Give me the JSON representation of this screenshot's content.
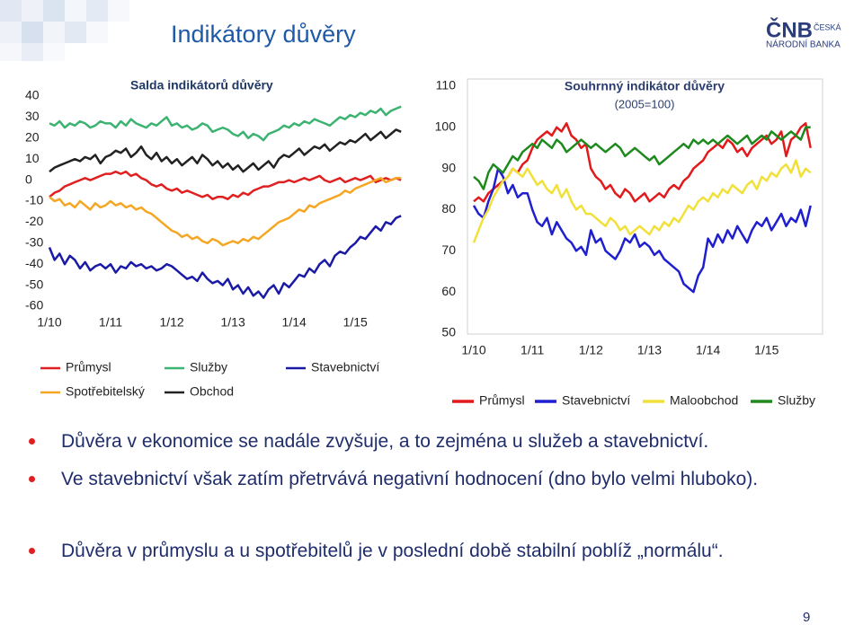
{
  "title": "Indikátory důvěry",
  "logo": {
    "brand": "ČNB",
    "line1": "ČESKÁ",
    "line2": "NÁRODNÍ BANKA"
  },
  "chart_data": [
    {
      "type": "line",
      "title": "Salda indikátorů důvěry",
      "categories": [
        "1/10",
        null,
        null,
        null,
        null,
        null,
        null,
        null,
        null,
        null,
        null,
        null,
        "1/11",
        null,
        null,
        null,
        null,
        null,
        null,
        null,
        null,
        null,
        null,
        null,
        "1/12",
        null,
        null,
        null,
        null,
        null,
        null,
        null,
        null,
        null,
        null,
        null,
        "1/13",
        null,
        null,
        null,
        null,
        null,
        null,
        null,
        null,
        null,
        null,
        null,
        "1/14",
        null,
        null,
        null,
        null,
        null,
        null,
        null,
        null,
        null,
        null,
        null,
        "1/15",
        null,
        null,
        null,
        null,
        null,
        null,
        null,
        null,
        null
      ],
      "ylim": [
        -60,
        40
      ],
      "yticks": [
        -60,
        -50,
        -40,
        -30,
        -20,
        -10,
        0,
        10,
        20,
        30,
        40
      ],
      "grid": false,
      "series": [
        {
          "name": "Průmysl",
          "color": "#e02020",
          "values": [
            -8,
            -6,
            -5,
            -3,
            -2,
            -1,
            0,
            1,
            0,
            1,
            2,
            3,
            3,
            4,
            3,
            4,
            2,
            3,
            1,
            0,
            -2,
            -3,
            -2,
            -4,
            -5,
            -4,
            -6,
            -5,
            -6,
            -7,
            -8,
            -7,
            -9,
            -8,
            -8,
            -9,
            -7,
            -8,
            -6,
            -7,
            -5,
            -4,
            -3,
            -3,
            -2,
            -1,
            -1,
            0,
            -1,
            0,
            1,
            0,
            1,
            2,
            0,
            -1,
            0,
            1,
            -1,
            0,
            1,
            0,
            1,
            2,
            -1,
            0,
            1,
            0,
            1,
            0
          ]
        },
        {
          "name": "Služby",
          "color": "#3cb371",
          "values": [
            27,
            26,
            28,
            25,
            27,
            26,
            28,
            27,
            25,
            26,
            28,
            27,
            27,
            25,
            28,
            26,
            29,
            27,
            26,
            25,
            27,
            26,
            28,
            30,
            26,
            27,
            25,
            26,
            24,
            25,
            27,
            26,
            23,
            24,
            25,
            24,
            22,
            21,
            23,
            20,
            22,
            21,
            19,
            22,
            23,
            24,
            26,
            25,
            27,
            26,
            28,
            27,
            29,
            28,
            27,
            26,
            28,
            30,
            29,
            31,
            30,
            32,
            31,
            33,
            32,
            34,
            31,
            33,
            34,
            35
          ]
        },
        {
          "name": "Stavebnictví",
          "color": "#1a1aa6",
          "values": [
            -32,
            -38,
            -35,
            -40,
            -36,
            -38,
            -42,
            -39,
            -43,
            -41,
            -40,
            -42,
            -40,
            -44,
            -41,
            -42,
            -39,
            -41,
            -40,
            -42,
            -41,
            -43,
            -42,
            -40,
            -41,
            -43,
            -45,
            -47,
            -46,
            -48,
            -44,
            -47,
            -49,
            -48,
            -50,
            -47,
            -52,
            -50,
            -54,
            -51,
            -55,
            -53,
            -56,
            -52,
            -50,
            -54,
            -49,
            -51,
            -48,
            -45,
            -46,
            -42,
            -44,
            -40,
            -38,
            -41,
            -36,
            -34,
            -35,
            -32,
            -30,
            -27,
            -28,
            -25,
            -22,
            -24,
            -20,
            -21,
            -18,
            -17
          ]
        },
        {
          "name": "Spotřebitelský",
          "color": "#f5a623",
          "values": [
            -8,
            -10,
            -9,
            -12,
            -11,
            -13,
            -10,
            -12,
            -14,
            -11,
            -13,
            -12,
            -10,
            -12,
            -11,
            -13,
            -12,
            -14,
            -13,
            -15,
            -16,
            -18,
            -20,
            -22,
            -24,
            -25,
            -27,
            -26,
            -28,
            -27,
            -29,
            -30,
            -28,
            -29,
            -31,
            -30,
            -29,
            -30,
            -28,
            -29,
            -27,
            -28,
            -26,
            -24,
            -22,
            -20,
            -19,
            -18,
            -16,
            -14,
            -15,
            -12,
            -13,
            -11,
            -10,
            -9,
            -8,
            -7,
            -5,
            -6,
            -4,
            -3,
            -2,
            -1,
            0,
            1,
            -1,
            0,
            1,
            1
          ]
        },
        {
          "name": "Obchod",
          "color": "#222222",
          "values": [
            4,
            6,
            7,
            8,
            9,
            10,
            9,
            11,
            10,
            12,
            8,
            11,
            12,
            14,
            13,
            15,
            11,
            13,
            16,
            12,
            10,
            13,
            9,
            11,
            8,
            10,
            7,
            9,
            11,
            8,
            12,
            10,
            7,
            9,
            6,
            8,
            5,
            7,
            4,
            6,
            8,
            5,
            7,
            9,
            6,
            10,
            12,
            11,
            13,
            15,
            12,
            14,
            16,
            15,
            17,
            14,
            16,
            18,
            17,
            19,
            18,
            20,
            22,
            19,
            21,
            23,
            20,
            22,
            24,
            23
          ]
        }
      ]
    },
    {
      "type": "line",
      "title": "Souhrnný indikátor důvěry",
      "subtitle": "(2005=100)",
      "categories": [
        "1/10",
        null,
        null,
        null,
        null,
        null,
        null,
        null,
        null,
        null,
        null,
        null,
        "1/11",
        null,
        null,
        null,
        null,
        null,
        null,
        null,
        null,
        null,
        null,
        null,
        "1/12",
        null,
        null,
        null,
        null,
        null,
        null,
        null,
        null,
        null,
        null,
        null,
        "1/13",
        null,
        null,
        null,
        null,
        null,
        null,
        null,
        null,
        null,
        null,
        null,
        "1/14",
        null,
        null,
        null,
        null,
        null,
        null,
        null,
        null,
        null,
        null,
        null,
        "1/15",
        null,
        null,
        null,
        null,
        null,
        null,
        null,
        null,
        null
      ],
      "ylim": [
        50,
        110
      ],
      "yticks": [
        50,
        60,
        70,
        80,
        90,
        100,
        110
      ],
      "grid": false,
      "series": [
        {
          "name": "Průmysl",
          "color": "#e31a1c",
          "values": [
            82,
            83,
            82,
            84,
            85,
            86,
            87,
            88,
            90,
            89,
            91,
            92,
            95,
            97,
            98,
            99,
            98,
            100,
            99,
            101,
            98,
            97,
            95,
            96,
            90,
            88,
            87,
            85,
            86,
            84,
            83,
            85,
            84,
            82,
            83,
            84,
            82,
            83,
            84,
            83,
            85,
            86,
            85,
            87,
            88,
            90,
            91,
            92,
            94,
            95,
            96,
            95,
            97,
            96,
            94,
            95,
            93,
            95,
            96,
            97,
            98,
            96,
            97,
            99,
            93,
            97,
            98,
            100,
            101,
            95
          ]
        },
        {
          "name": "Stavebnictví",
          "color": "#1f1fd0",
          "values": [
            81,
            79,
            78,
            82,
            85,
            90,
            88,
            84,
            86,
            83,
            84,
            84,
            80,
            77,
            76,
            78,
            74,
            77,
            75,
            73,
            72,
            70,
            71,
            69,
            75,
            72,
            73,
            70,
            69,
            68,
            70,
            73,
            72,
            74,
            71,
            72,
            71,
            69,
            70,
            68,
            67,
            66,
            65,
            62,
            61,
            60,
            64,
            66,
            73,
            71,
            74,
            72,
            75,
            73,
            76,
            74,
            72,
            75,
            77,
            76,
            78,
            75,
            77,
            79,
            76,
            78,
            77,
            80,
            76,
            81
          ]
        },
        {
          "name": "Maloobchod",
          "color": "#f2e03a",
          "values": [
            72,
            75,
            78,
            80,
            83,
            85,
            87,
            88,
            90,
            89,
            88,
            90,
            88,
            86,
            87,
            85,
            84,
            86,
            83,
            85,
            82,
            80,
            81,
            79,
            79,
            78,
            77,
            76,
            78,
            77,
            75,
            76,
            74,
            75,
            76,
            75,
            74,
            76,
            75,
            77,
            76,
            78,
            77,
            79,
            81,
            80,
            82,
            83,
            82,
            84,
            83,
            85,
            84,
            86,
            85,
            84,
            86,
            87,
            85,
            88,
            87,
            89,
            88,
            90,
            91,
            89,
            92,
            88,
            90,
            89
          ]
        },
        {
          "name": "Služby",
          "color": "#1e8a1e",
          "values": [
            88,
            87,
            85,
            89,
            91,
            90,
            89,
            91,
            93,
            92,
            94,
            95,
            96,
            95,
            97,
            96,
            95,
            97,
            96,
            94,
            95,
            96,
            97,
            96,
            95,
            96,
            95,
            94,
            95,
            96,
            95,
            93,
            94,
            95,
            94,
            93,
            92,
            93,
            91,
            92,
            93,
            94,
            95,
            96,
            95,
            97,
            96,
            97,
            96,
            97,
            96,
            97,
            98,
            97,
            96,
            97,
            98,
            96,
            97,
            98,
            97,
            99,
            98,
            97,
            98,
            99,
            98,
            97,
            100,
            100
          ]
        }
      ]
    }
  ],
  "bullets": [
    "Důvěra v ekonomice se nadále zvyšuje, a to zejména u služeb a stavebnictví.",
    "Ve stavebnictví však zatím přetrvává negativní hodnocení (dno bylo velmi hluboko).",
    "Důvěra v průmyslu a u spotřebitelů je v poslední době stabilní poblíž „normálu“."
  ],
  "page_number": 9
}
